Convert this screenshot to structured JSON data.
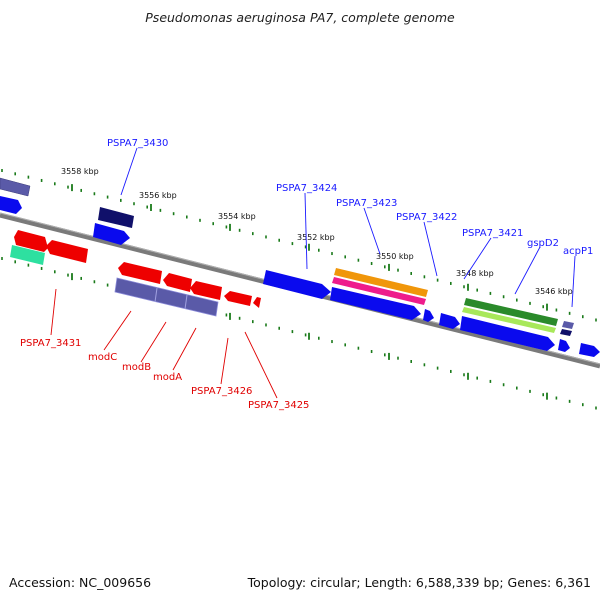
{
  "title": "Pseudomonas aeruginosa PA7, complete genome",
  "footer": {
    "accession": "Accession: NC_009656",
    "topology": "Topology: circular; Length: 6,588,339 bp; Genes: 6,361"
  },
  "scale_labels": [
    "3558 kbp",
    "3556 kbp",
    "3554 kbp",
    "3552 kbp",
    "3550 kbp",
    "3548 kbp",
    "3546 kbp"
  ],
  "gene_labels_top": [
    "PSPA7_3430",
    "PSPA7_3424",
    "PSPA7_3423",
    "PSPA7_3422",
    "PSPA7_3421",
    "gspD2",
    "acpP1"
  ],
  "gene_labels_bottom": [
    "PSPA7_3431",
    "modC",
    "modB",
    "modA",
    "PSPA7_3426",
    "PSPA7_3425"
  ],
  "colors": {
    "forward_gene": "#0a0aee",
    "reverse_gene": "#ee0000",
    "operon_purple": "#5a5aa8",
    "dark_navy": "#10106a",
    "orange": "#f0960a",
    "pink": "#ee1c8c",
    "dark_green": "#2a8a2a",
    "light_green": "#a8e85a",
    "teal": "#2ee0a0",
    "backbone": "#7a7a7a",
    "ticks": "#1a7a1a",
    "label_blue": "#1a1aff",
    "label_red": "#e00000"
  }
}
